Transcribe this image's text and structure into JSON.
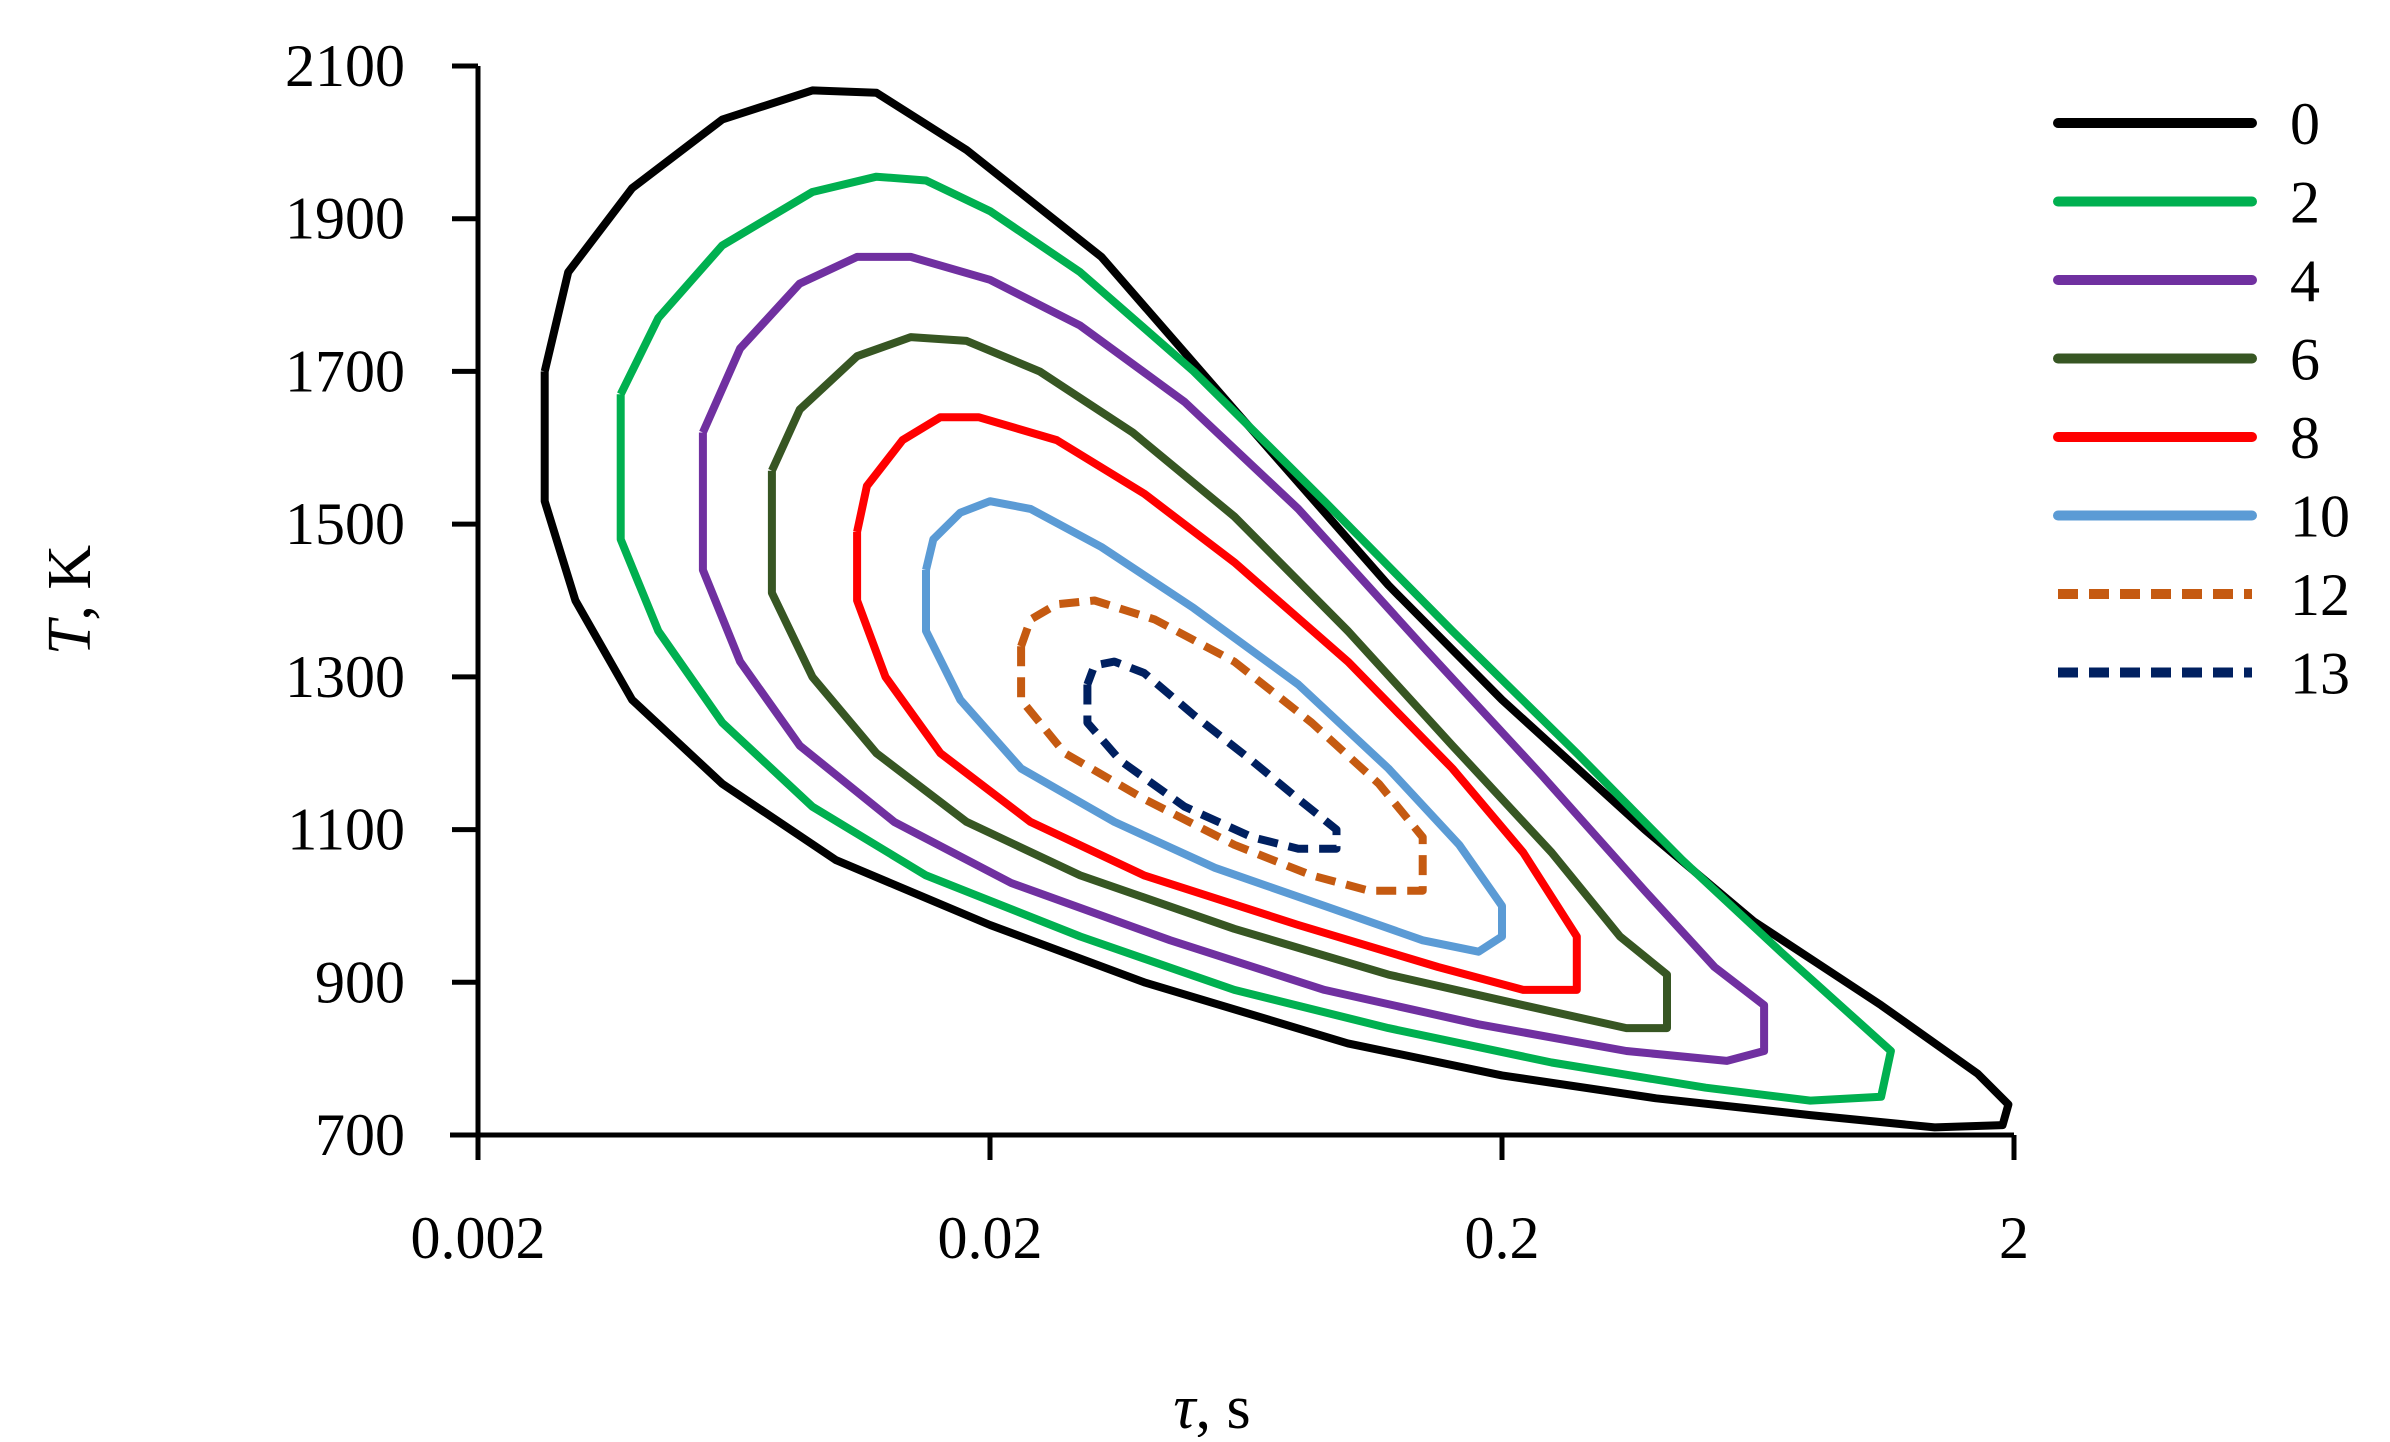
{
  "chart_data": {
    "type": "line",
    "subtype": "contour",
    "title": "",
    "xlabel": "τ, s",
    "ylabel": "T, K",
    "xlabel_parts": {
      "symbol": "τ",
      "rest": ", s"
    },
    "ylabel_parts": {
      "symbol": "T",
      "rest": ", K"
    },
    "xscale": "log",
    "xlim": [
      0.002,
      2
    ],
    "ylim": [
      700,
      2100
    ],
    "xticks": [
      0.002,
      0.02,
      0.2,
      2
    ],
    "xtick_labels": [
      "0.002",
      "0.02",
      "0.2",
      "2"
    ],
    "yticks": [
      700,
      900,
      1100,
      1300,
      1500,
      1700,
      1900,
      2100
    ],
    "ytick_labels": [
      "700",
      "900",
      "1100",
      "1300",
      "1500",
      "1700",
      "1900",
      "2100"
    ],
    "grid": false,
    "legend_position": "right",
    "series": [
      {
        "name": "0",
        "color": "#000000",
        "dash": "solid",
        "points": [
          [
            0.0027,
            1700
          ],
          [
            0.0027,
            1530
          ],
          [
            0.0031,
            1400
          ],
          [
            0.004,
            1270
          ],
          [
            0.006,
            1160
          ],
          [
            0.01,
            1060
          ],
          [
            0.02,
            975
          ],
          [
            0.04,
            900
          ],
          [
            0.1,
            820
          ],
          [
            0.2,
            778
          ],
          [
            0.4,
            748
          ],
          [
            0.8,
            726
          ],
          [
            1.4,
            710
          ],
          [
            1.9,
            713
          ],
          [
            1.95,
            740
          ],
          [
            1.7,
            780
          ],
          [
            1.1,
            870
          ],
          [
            0.62,
            980
          ],
          [
            0.38,
            1100
          ],
          [
            0.2,
            1270
          ],
          [
            0.12,
            1420
          ],
          [
            0.06,
            1650
          ],
          [
            0.033,
            1850
          ],
          [
            0.018,
            1990
          ],
          [
            0.012,
            2065
          ],
          [
            0.009,
            2068
          ],
          [
            0.006,
            2030
          ],
          [
            0.004,
            1940
          ],
          [
            0.003,
            1830
          ],
          [
            0.0027,
            1700
          ]
        ]
      },
      {
        "name": "2",
        "color": "#00b050",
        "dash": "solid",
        "points": [
          [
            0.0038,
            1670
          ],
          [
            0.0038,
            1480
          ],
          [
            0.0045,
            1360
          ],
          [
            0.006,
            1240
          ],
          [
            0.009,
            1130
          ],
          [
            0.015,
            1040
          ],
          [
            0.03,
            960
          ],
          [
            0.06,
            890
          ],
          [
            0.12,
            840
          ],
          [
            0.25,
            795
          ],
          [
            0.5,
            762
          ],
          [
            0.8,
            745
          ],
          [
            1.1,
            750
          ],
          [
            1.15,
            810
          ],
          [
            0.95,
            860
          ],
          [
            0.7,
            940
          ],
          [
            0.45,
            1060
          ],
          [
            0.28,
            1200
          ],
          [
            0.16,
            1360
          ],
          [
            0.09,
            1530
          ],
          [
            0.05,
            1700
          ],
          [
            0.03,
            1830
          ],
          [
            0.02,
            1910
          ],
          [
            0.015,
            1950
          ],
          [
            0.012,
            1955
          ],
          [
            0.009,
            1935
          ],
          [
            0.006,
            1865
          ],
          [
            0.0045,
            1770
          ],
          [
            0.0038,
            1670
          ]
        ]
      },
      {
        "name": "4",
        "color": "#7030a0",
        "dash": "solid",
        "points": [
          [
            0.0055,
            1620
          ],
          [
            0.0055,
            1440
          ],
          [
            0.0065,
            1320
          ],
          [
            0.0085,
            1210
          ],
          [
            0.013,
            1110
          ],
          [
            0.022,
            1030
          ],
          [
            0.045,
            955
          ],
          [
            0.09,
            890
          ],
          [
            0.18,
            845
          ],
          [
            0.35,
            810
          ],
          [
            0.55,
            797
          ],
          [
            0.65,
            810
          ],
          [
            0.65,
            870
          ],
          [
            0.52,
            920
          ],
          [
            0.38,
            1020
          ],
          [
            0.24,
            1170
          ],
          [
            0.14,
            1340
          ],
          [
            0.08,
            1520
          ],
          [
            0.048,
            1660
          ],
          [
            0.03,
            1760
          ],
          [
            0.02,
            1820
          ],
          [
            0.014,
            1850
          ],
          [
            0.011,
            1850
          ],
          [
            0.0085,
            1815
          ],
          [
            0.0065,
            1730
          ],
          [
            0.0055,
            1620
          ]
        ]
      },
      {
        "name": "6",
        "color": "#375623",
        "dash": "solid",
        "points": [
          [
            0.0075,
            1570
          ],
          [
            0.0075,
            1410
          ],
          [
            0.009,
            1300
          ],
          [
            0.012,
            1200
          ],
          [
            0.018,
            1110
          ],
          [
            0.03,
            1040
          ],
          [
            0.06,
            970
          ],
          [
            0.12,
            910
          ],
          [
            0.22,
            870
          ],
          [
            0.35,
            840
          ],
          [
            0.42,
            840
          ],
          [
            0.42,
            910
          ],
          [
            0.34,
            960
          ],
          [
            0.25,
            1070
          ],
          [
            0.16,
            1210
          ],
          [
            0.1,
            1360
          ],
          [
            0.06,
            1510
          ],
          [
            0.038,
            1620
          ],
          [
            0.025,
            1700
          ],
          [
            0.018,
            1740
          ],
          [
            0.014,
            1745
          ],
          [
            0.011,
            1720
          ],
          [
            0.0085,
            1650
          ],
          [
            0.0075,
            1570
          ]
        ]
      },
      {
        "name": "8",
        "color": "#ff0000",
        "dash": "solid",
        "points": [
          [
            0.011,
            1490
          ],
          [
            0.011,
            1400
          ],
          [
            0.0125,
            1300
          ],
          [
            0.016,
            1200
          ],
          [
            0.024,
            1110
          ],
          [
            0.04,
            1040
          ],
          [
            0.08,
            975
          ],
          [
            0.15,
            920
          ],
          [
            0.22,
            890
          ],
          [
            0.28,
            890
          ],
          [
            0.28,
            960
          ],
          [
            0.22,
            1070
          ],
          [
            0.16,
            1180
          ],
          [
            0.1,
            1320
          ],
          [
            0.06,
            1450
          ],
          [
            0.04,
            1540
          ],
          [
            0.027,
            1610
          ],
          [
            0.019,
            1640
          ],
          [
            0.016,
            1640
          ],
          [
            0.0135,
            1610
          ],
          [
            0.0115,
            1550
          ],
          [
            0.011,
            1490
          ]
        ]
      },
      {
        "name": "10",
        "color": "#5b9bd5",
        "dash": "solid",
        "points": [
          [
            0.015,
            1440
          ],
          [
            0.015,
            1360
          ],
          [
            0.0175,
            1270
          ],
          [
            0.023,
            1180
          ],
          [
            0.035,
            1110
          ],
          [
            0.055,
            1050
          ],
          [
            0.09,
            1000
          ],
          [
            0.14,
            955
          ],
          [
            0.18,
            940
          ],
          [
            0.2,
            960
          ],
          [
            0.2,
            1000
          ],
          [
            0.165,
            1080
          ],
          [
            0.12,
            1180
          ],
          [
            0.08,
            1290
          ],
          [
            0.05,
            1390
          ],
          [
            0.033,
            1470
          ],
          [
            0.024,
            1520
          ],
          [
            0.02,
            1530
          ],
          [
            0.0175,
            1515
          ],
          [
            0.0155,
            1480
          ],
          [
            0.015,
            1440
          ]
        ]
      },
      {
        "name": "12",
        "color": "#c55a11",
        "dash": "dashed",
        "points": [
          [
            0.023,
            1340
          ],
          [
            0.023,
            1270
          ],
          [
            0.028,
            1200
          ],
          [
            0.04,
            1140
          ],
          [
            0.06,
            1080
          ],
          [
            0.085,
            1040
          ],
          [
            0.11,
            1020
          ],
          [
            0.14,
            1020
          ],
          [
            0.14,
            1090
          ],
          [
            0.115,
            1160
          ],
          [
            0.085,
            1240
          ],
          [
            0.06,
            1320
          ],
          [
            0.042,
            1375
          ],
          [
            0.032,
            1400
          ],
          [
            0.027,
            1395
          ],
          [
            0.024,
            1375
          ],
          [
            0.023,
            1340
          ]
        ]
      },
      {
        "name": "13",
        "color": "#002060",
        "dash": "dashed",
        "points": [
          [
            0.031,
            1290
          ],
          [
            0.031,
            1240
          ],
          [
            0.036,
            1190
          ],
          [
            0.048,
            1130
          ],
          [
            0.065,
            1090
          ],
          [
            0.08,
            1075
          ],
          [
            0.095,
            1075
          ],
          [
            0.095,
            1100
          ],
          [
            0.08,
            1140
          ],
          [
            0.065,
            1190
          ],
          [
            0.05,
            1250
          ],
          [
            0.04,
            1305
          ],
          [
            0.035,
            1320
          ],
          [
            0.032,
            1315
          ],
          [
            0.031,
            1290
          ]
        ]
      }
    ]
  }
}
